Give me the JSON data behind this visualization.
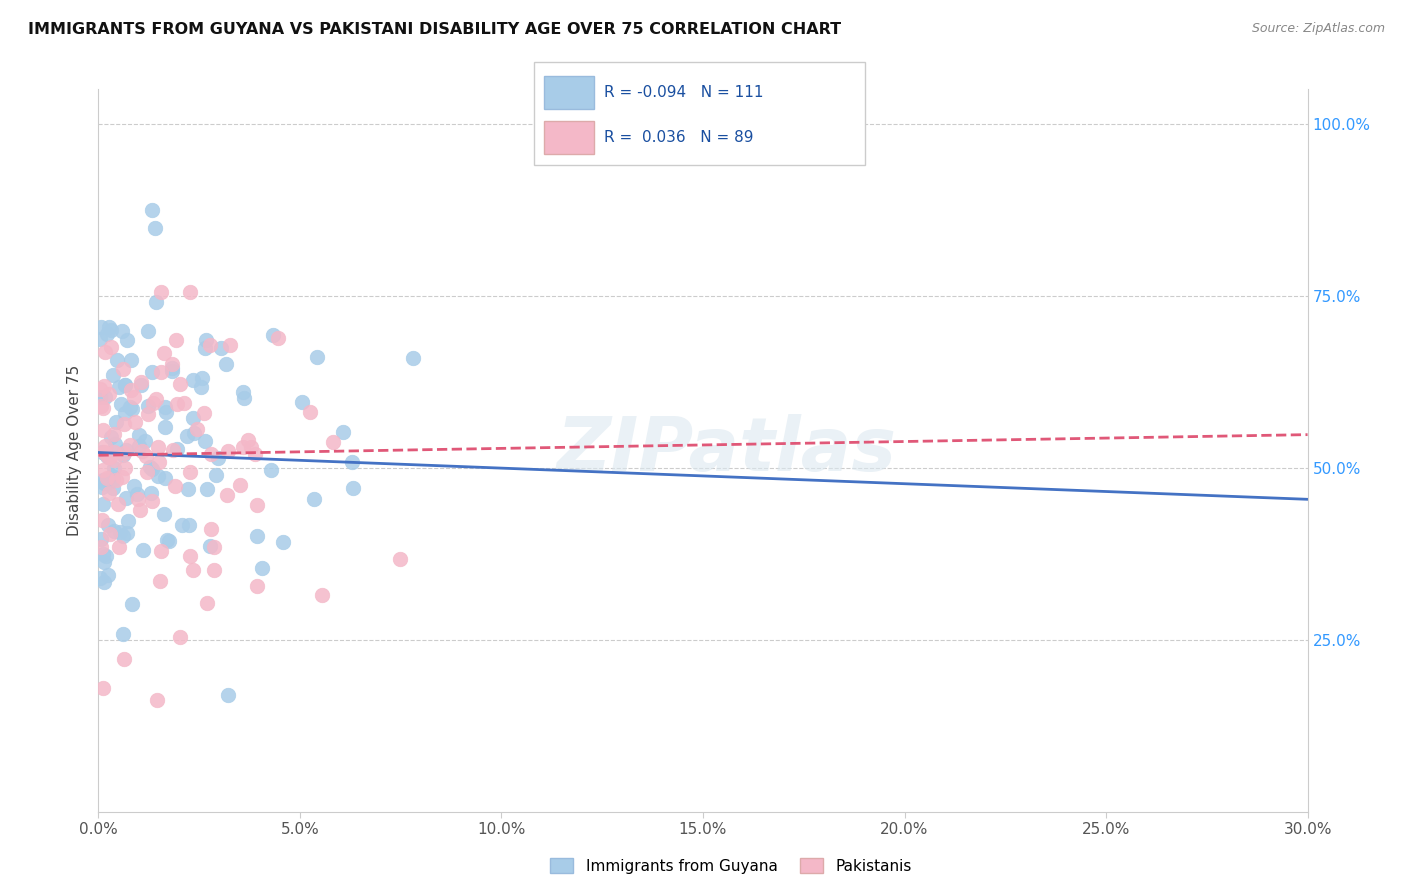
{
  "title": "IMMIGRANTS FROM GUYANA VS PAKISTANI DISABILITY AGE OVER 75 CORRELATION CHART",
  "source": "Source: ZipAtlas.com",
  "ylabel": "Disability Age Over 75",
  "xmin": 0.0,
  "xmax": 0.3,
  "ymin": 0.0,
  "ymax": 1.05,
  "xtick_labels": [
    "0.0%",
    "5.0%",
    "10.0%",
    "15.0%",
    "20.0%",
    "25.0%",
    "30.0%"
  ],
  "xtick_values": [
    0.0,
    0.05,
    0.1,
    0.15,
    0.2,
    0.25,
    0.3
  ],
  "ytick_labels": [
    "25.0%",
    "50.0%",
    "75.0%",
    "100.0%"
  ],
  "ytick_values": [
    0.25,
    0.5,
    0.75,
    1.0
  ],
  "blue_color": "#a8cce8",
  "pink_color": "#f4b8c8",
  "blue_line_color": "#4472c4",
  "pink_line_color": "#e05878",
  "R_blue": -0.094,
  "N_blue": 111,
  "R_pink": 0.036,
  "N_pink": 89,
  "legend_label_blue": "Immigrants from Guyana",
  "legend_label_pink": "Pakistanis",
  "watermark": "ZIPatlas",
  "blue_trendline_x": [
    0.0,
    0.3
  ],
  "blue_trendline_y": [
    0.522,
    0.454
  ],
  "pink_trendline_x": [
    0.0,
    0.3
  ],
  "pink_trendline_y": [
    0.518,
    0.548
  ]
}
